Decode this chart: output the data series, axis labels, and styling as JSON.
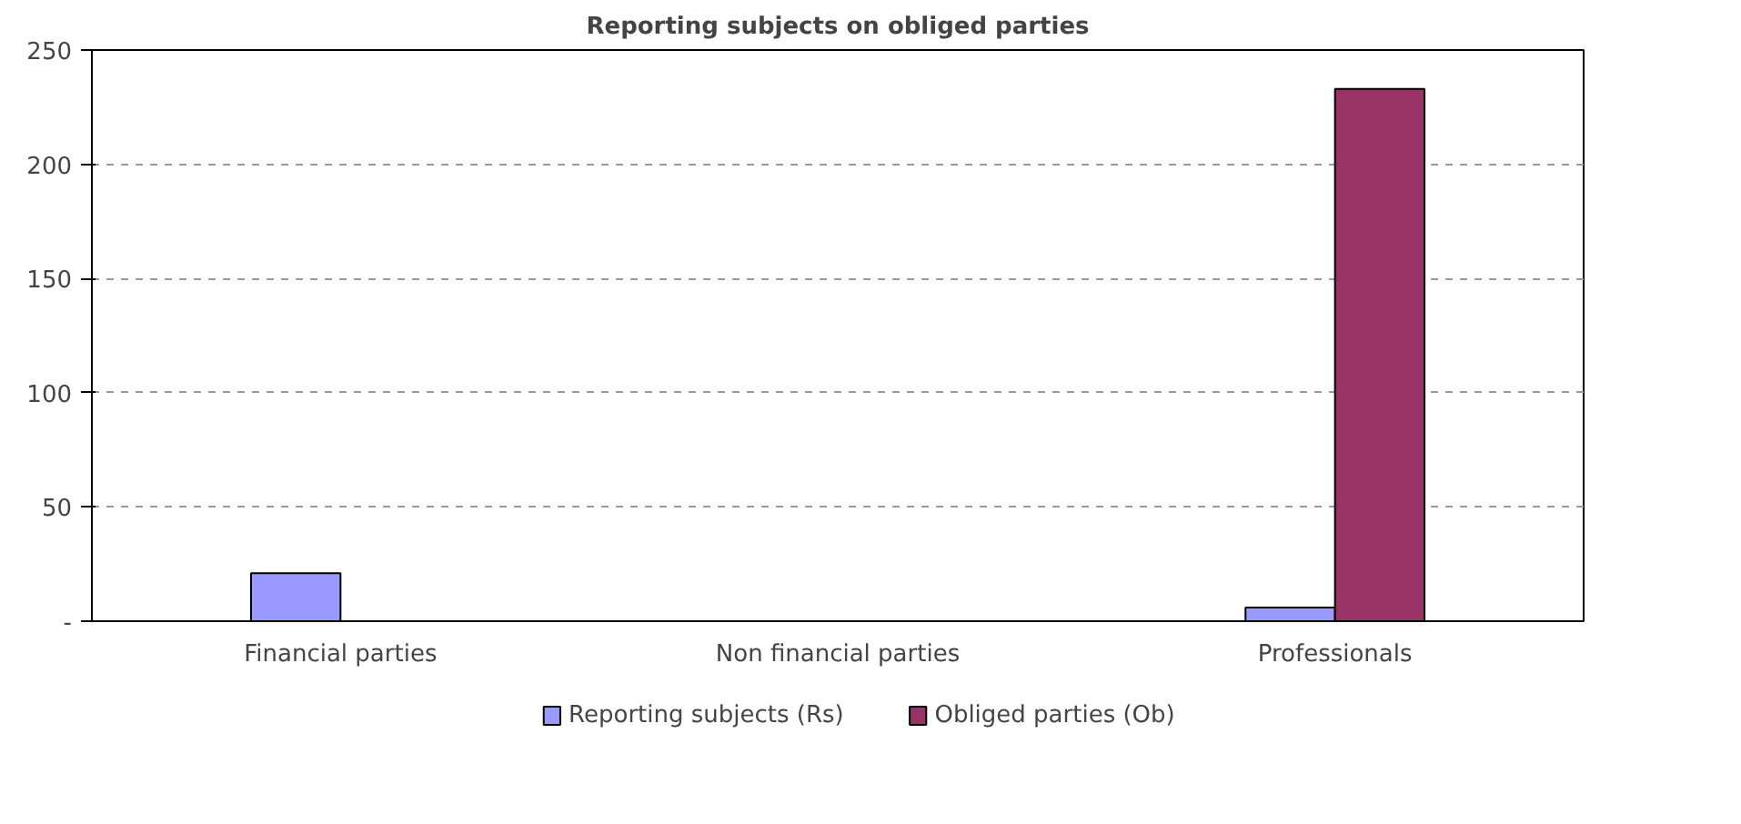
{
  "chart_data": {
    "type": "bar",
    "title": "Reporting subjects on obliged parties",
    "categories": [
      "Financial parties",
      "Non financial parties",
      "Professionals"
    ],
    "series": [
      {
        "name": "Reporting subjects (Rs)",
        "color": "#9999ff",
        "values": [
          21,
          null,
          6
        ]
      },
      {
        "name": "Obliged parties (Ob)",
        "color": "#993366",
        "values": [
          null,
          null,
          233
        ]
      }
    ],
    "ylim": [
      0,
      250
    ],
    "yticks": [
      {
        "value": 0,
        "label": "-"
      },
      50,
      100,
      150,
      200,
      250
    ],
    "grid": "y",
    "legend": "bottom"
  }
}
